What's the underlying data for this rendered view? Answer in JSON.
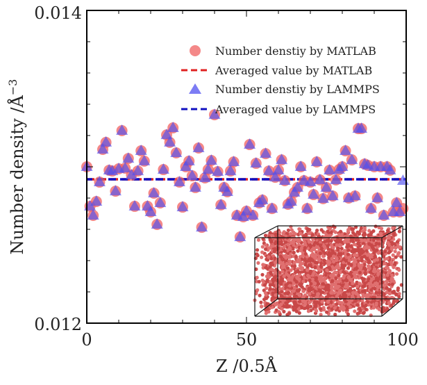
{
  "chart_data": {
    "type": "scatter",
    "xlabel": "Z /0.5Å",
    "ylabel": "Number density /Å",
    "ylabel_exponent": "−3",
    "xlim": [
      0,
      100
    ],
    "ylim": [
      0.012,
      0.014
    ],
    "x_ticks": [
      "0",
      "50",
      "100"
    ],
    "y_ticks": [
      "0.012",
      "0.014"
    ],
    "grid": false,
    "legend_position": "top-right",
    "series": [
      {
        "name": "Number denstiy by MATLAB",
        "kind": "scatter",
        "marker": "circle",
        "color": "#f06060",
        "values": [
          0.013,
          0.012747,
          0.012689,
          0.012778,
          0.012902,
          0.013111,
          0.013156,
          0.012978,
          0.012973,
          0.012844,
          0.012987,
          0.013231,
          0.012991,
          0.013053,
          0.012947,
          0.012747,
          0.012973,
          0.013102,
          0.013036,
          0.012747,
          0.012711,
          0.012831,
          0.012631,
          0.012769,
          0.012982,
          0.013204,
          0.013156,
          0.013249,
          0.013089,
          0.012902,
          0.012742,
          0.013,
          0.013036,
          0.012942,
          0.012867,
          0.01312,
          0.012613,
          0.012929,
          0.012982,
          0.01304,
          0.013333,
          0.012969,
          0.012756,
          0.012867,
          0.01284,
          0.012973,
          0.013031,
          0.012689,
          0.012551,
          0.01268,
          0.012716,
          0.013142,
          0.012689,
          0.013022,
          0.012769,
          0.012787,
          0.013084,
          0.012973,
          0.012733,
          0.012933,
          0.012978,
          0.013044,
          0.012911,
          0.01276,
          0.012778,
          0.012836,
          0.012867,
          0.013,
          0.012911,
          0.012733,
          0.012902,
          0.012822,
          0.013031,
          0.012916,
          0.012796,
          0.012867,
          0.012978,
          0.012813,
          0.012916,
          0.012982,
          0.013,
          0.013102,
          0.0128,
          0.013044,
          0.012813,
          0.013244,
          0.013244,
          0.013018,
          0.013009,
          0.012733,
          0.013,
          0.0128,
          0.013,
          0.012689,
          0.013,
          0.012978,
          0.012711,
          0.012769,
          0.012711,
          0.012733
        ]
      },
      {
        "name": "Averaged value by MATLAB",
        "kind": "line",
        "color": "#e02020",
        "value": 0.01292
      },
      {
        "name": "Number denstiy by LAMMPS",
        "kind": "scatter",
        "marker": "triangle",
        "color": "#5050f0",
        "values": [
          0.013,
          0.012747,
          0.012689,
          0.012778,
          0.012902,
          0.013111,
          0.013156,
          0.012978,
          0.012973,
          0.012844,
          0.012987,
          0.013231,
          0.012991,
          0.013053,
          0.012947,
          0.012747,
          0.012973,
          0.013102,
          0.013036,
          0.012747,
          0.012711,
          0.012831,
          0.012631,
          0.012769,
          0.012982,
          0.013204,
          0.013156,
          0.013249,
          0.013089,
          0.012902,
          0.012742,
          0.013,
          0.013036,
          0.012942,
          0.012867,
          0.01312,
          0.012613,
          0.012929,
          0.012982,
          0.01304,
          0.013333,
          0.012969,
          0.012756,
          0.012867,
          0.01284,
          0.012973,
          0.013031,
          0.012689,
          0.012551,
          0.01268,
          0.012716,
          0.013142,
          0.012689,
          0.013022,
          0.012769,
          0.012787,
          0.013084,
          0.012973,
          0.012733,
          0.012933,
          0.012978,
          0.013044,
          0.012911,
          0.01276,
          0.012778,
          0.012836,
          0.012867,
          0.013,
          0.012911,
          0.012733,
          0.012902,
          0.012822,
          0.013031,
          0.012916,
          0.012796,
          0.012867,
          0.012978,
          0.012813,
          0.012916,
          0.012982,
          0.013,
          0.013102,
          0.0128,
          0.013044,
          0.012813,
          0.013244,
          0.013244,
          0.013018,
          0.013009,
          0.012733,
          0.013,
          0.0128,
          0.013,
          0.012689,
          0.013,
          0.012978,
          0.012711,
          0.012769,
          0.012711,
          0.012911
        ]
      },
      {
        "name": "Averaged value by LAMMPS",
        "kind": "line",
        "color": "#1010c0",
        "value": 0.01292
      }
    ]
  }
}
